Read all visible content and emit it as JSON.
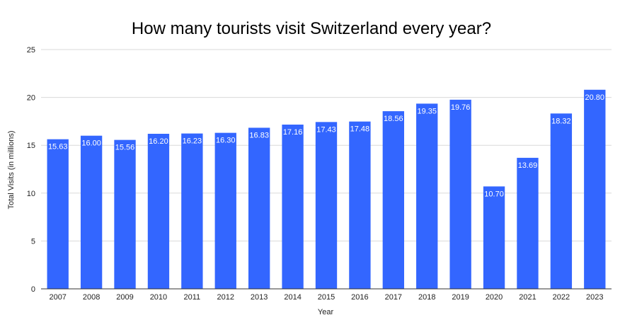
{
  "chart_data": {
    "type": "bar",
    "title": "How many tourists visit Switzerland every year?",
    "xlabel": "Year",
    "ylabel": "Total Visits (in millions)",
    "ylim": [
      0,
      25
    ],
    "yticks": [
      0,
      5,
      10,
      15,
      20,
      25
    ],
    "grid": true,
    "bar_color": "#3366ff",
    "categories": [
      "2007",
      "2008",
      "2009",
      "2010",
      "2011",
      "2012",
      "2013",
      "2014",
      "2015",
      "2016",
      "2017",
      "2018",
      "2019",
      "2020",
      "2021",
      "2022",
      "2023"
    ],
    "values": [
      15.63,
      16.0,
      15.56,
      16.2,
      16.23,
      16.3,
      16.83,
      17.16,
      17.43,
      17.48,
      18.56,
      19.35,
      19.76,
      10.7,
      13.69,
      18.32,
      20.8
    ],
    "value_labels": [
      "15.63",
      "16.00",
      "15.56",
      "16.20",
      "16.23",
      "16.30",
      "16.83",
      "17.16",
      "17.43",
      "17.48",
      "18.56",
      "19.35",
      "19.76",
      "10.70",
      "13.69",
      "18.32",
      "20.80"
    ]
  }
}
